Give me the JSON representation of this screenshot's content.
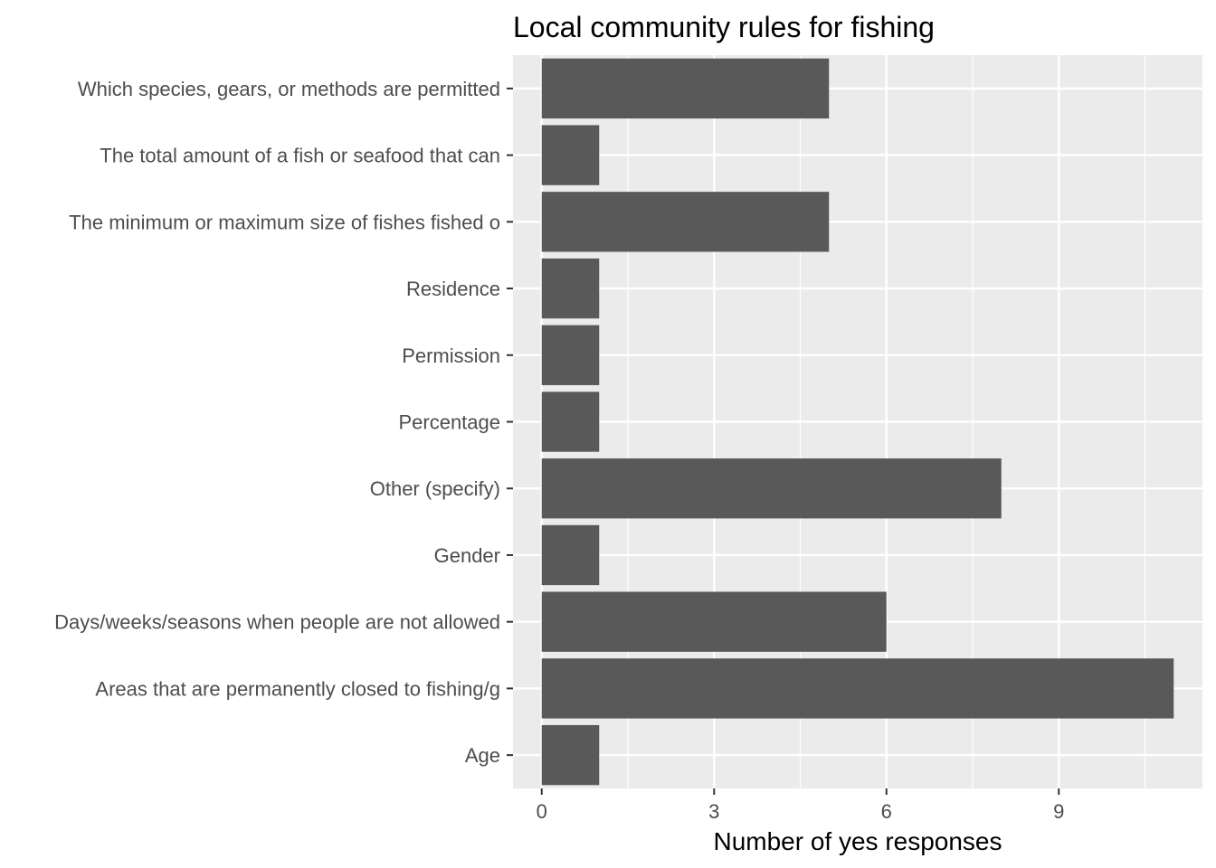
{
  "chart_data": {
    "type": "bar",
    "orientation": "horizontal",
    "title": "Local community rules for fishing",
    "xlabel": "Number of yes responses",
    "ylabel": "",
    "categories": [
      "Which species, gears, or methods are permitted",
      "The total amount of a fish or seafood that can",
      "The minimum or maximum size of fishes fished o",
      "Residence",
      "Permission",
      "Percentage",
      "Other (specify)",
      "Gender",
      "Days/weeks/seasons when people are not allowed",
      "Areas that are permanently closed to fishing/g",
      "Age"
    ],
    "values": [
      5,
      1,
      5,
      1,
      1,
      1,
      8,
      1,
      6,
      11,
      1
    ],
    "xlim": [
      -0.5,
      11.5
    ],
    "xticks": [
      0,
      3,
      6,
      9
    ],
    "grid": true,
    "legend": "none",
    "colors": {
      "bar": "#595959",
      "panel": "#ebebeb",
      "grid_major": "#ffffff",
      "tick": "#333333",
      "tick_label": "#4d4d4d"
    }
  }
}
